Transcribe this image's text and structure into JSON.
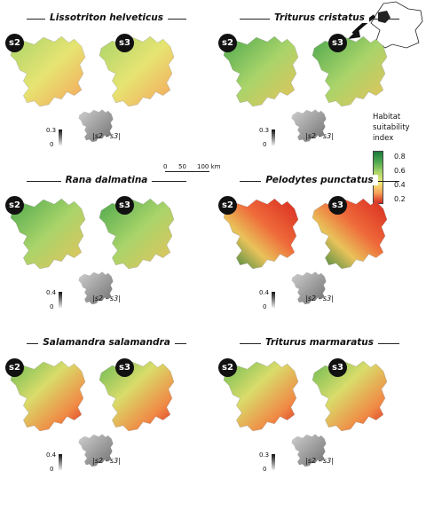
{
  "inset": {
    "arrow": "arrow-icon",
    "region_color": "#222222",
    "country_color": "#ffffff"
  },
  "legend": {
    "title": [
      "Habitat",
      "suitability",
      "index"
    ],
    "ticks": [
      "0.8",
      "0.6",
      "0.4",
      "0.2"
    ],
    "colors": [
      "#1a7a3a",
      "#a9d46a",
      "#f4ec7b",
      "#d7291f"
    ]
  },
  "scalebar": {
    "labels": [
      "0",
      "50",
      "100 km"
    ]
  },
  "badges": {
    "s2": "s2",
    "s3": "s3"
  },
  "diff_label": "|s2 - s3|",
  "panels": [
    {
      "species": "Lissotriton helveticus",
      "diff_max": "0.3",
      "diff_min": "0"
    },
    {
      "species": "Triturus cristatus",
      "diff_max": "0.3",
      "diff_min": "0"
    },
    {
      "species": "Rana dalmatina",
      "diff_max": "0.4",
      "diff_min": "0"
    },
    {
      "species": "Pelodytes punctatus",
      "diff_max": "0.4",
      "diff_min": "0"
    },
    {
      "species": "Salamandra salamandra",
      "diff_max": "0.4",
      "diff_min": "0"
    },
    {
      "species": "Triturus marmaratus",
      "diff_max": "0.3",
      "diff_min": "0"
    }
  ]
}
